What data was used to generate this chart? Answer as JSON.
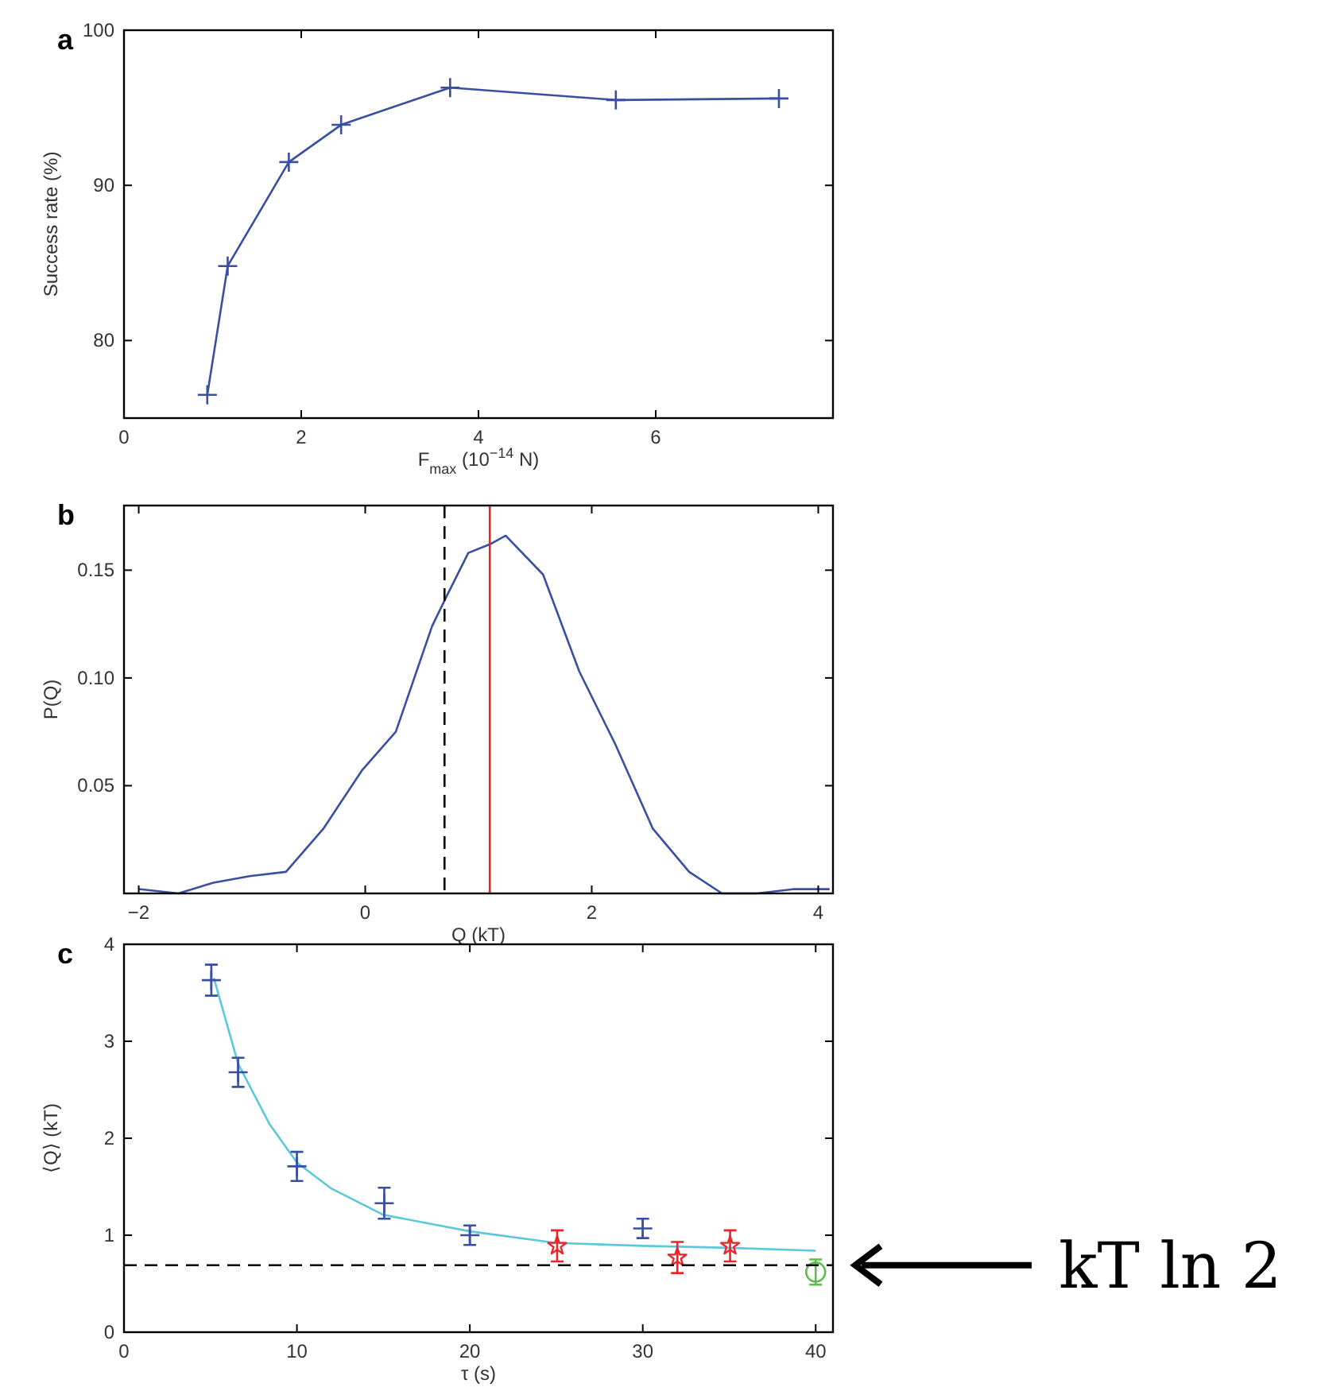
{
  "chart_data": [
    {
      "type": "line",
      "title": "a",
      "xlabel": "F$_{max}$ (10$^{−14}$ N)",
      "ylabel": "Success rate (%)",
      "xlim": [
        0,
        8
      ],
      "ylim": [
        75,
        100
      ],
      "xticks": [
        0,
        2,
        4,
        6
      ],
      "yticks": [
        80,
        90,
        100
      ],
      "marker": "cross",
      "series": [
        {
          "color": "#3a4fa0",
          "x": [
            0.94,
            1.17,
            1.86,
            2.45,
            3.68,
            5.55,
            7.39
          ],
          "values": [
            76.5,
            84.8,
            91.5,
            93.9,
            96.3,
            95.5,
            95.6
          ]
        }
      ]
    },
    {
      "type": "line",
      "title": "b",
      "xlabel": "Q (kT)",
      "ylabel": "P(Q)",
      "xlim": [
        -2.13,
        4.13
      ],
      "ylim": [
        0,
        0.18
      ],
      "xticks": [
        {
          "value": -2,
          "label": "−2"
        },
        0,
        2,
        4
      ],
      "yticks": [
        0.05,
        {
          "value": 0.1,
          "label": "0.10"
        },
        0.15
      ],
      "marker": "none",
      "ref_lines": [
        {
          "axis": "x",
          "value": 0.7,
          "color": "#000000",
          "line_style": "dashed"
        },
        {
          "axis": "x",
          "value": 1.1,
          "color": "#e8262a",
          "line_style": "solid"
        }
      ],
      "series": [
        {
          "color": "#3a4fa0",
          "x": [
            -2.0,
            -1.65,
            -1.34,
            -1.02,
            -0.7,
            -0.37,
            -0.03,
            0.27,
            0.59,
            0.71,
            0.91,
            1.1,
            1.24,
            1.57,
            1.89,
            2.21,
            2.54,
            2.86,
            3.15,
            3.46,
            3.79,
            4.1
          ],
          "values": [
            0.002,
            0,
            0.005,
            0.008,
            0.01,
            0.03,
            0.057,
            0.075,
            0.124,
            0.137,
            0.158,
            0.162,
            0.166,
            0.148,
            0.103,
            0.069,
            0.03,
            0.01,
            0,
            0,
            0.002,
            0.002
          ]
        }
      ]
    },
    {
      "type": "scatter",
      "title": "c",
      "xlabel": "τ (s)",
      "ylabel": "⟨Q⟩ (kT)",
      "xlim": [
        0,
        41
      ],
      "ylim": [
        0,
        4
      ],
      "xticks": [
        0,
        10,
        20,
        30,
        40
      ],
      "yticks": [
        0,
        1,
        2,
        3,
        4
      ],
      "ref_lines": [
        {
          "axis": "y",
          "value": 0.69,
          "label": "kT ln 2",
          "color": "#000000",
          "line_style": "dashed"
        }
      ],
      "series": [
        {
          "type": "line",
          "marker": "none",
          "color": "#5bc8dc",
          "x": [
            5.2,
            6.6,
            8.4,
            10,
            12,
            15,
            20,
            25,
            30,
            35,
            40
          ],
          "values": [
            3.65,
            2.77,
            2.15,
            1.75,
            1.48,
            1.21,
            1.04,
            0.92,
            0.89,
            0.87,
            0.84
          ]
        },
        {
          "marker": "cross",
          "color": "#3a4fa0",
          "x": [
            5.05,
            6.6,
            10,
            15.05,
            20,
            30
          ],
          "values": [
            3.63,
            2.68,
            1.71,
            1.33,
            1.0,
            1.07
          ],
          "errors": [
            0.16,
            0.15,
            0.15,
            0.16,
            0.1,
            0.1
          ]
        },
        {
          "marker": "star",
          "color": "#e8262a",
          "x": [
            25.05,
            32,
            35.05
          ],
          "values": [
            0.89,
            0.77,
            0.89
          ],
          "errors": [
            0.16,
            0.16,
            0.16
          ]
        },
        {
          "marker": "circle",
          "color": "#5bbf4a",
          "x": [
            40
          ],
          "values": [
            0.62
          ],
          "errors": [
            0.13
          ]
        }
      ]
    }
  ]
}
